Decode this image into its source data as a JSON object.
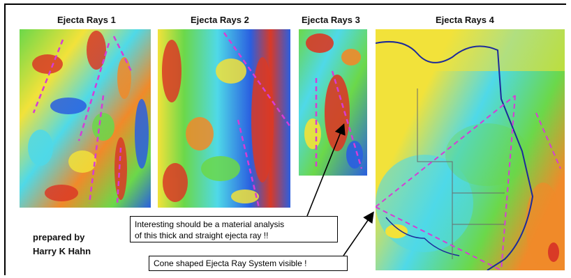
{
  "panels": [
    {
      "title": "Ejecta Rays 1",
      "image_icon": "ejecta-ray-map-1"
    },
    {
      "title": "Ejecta Rays 2",
      "image_icon": "ejecta-ray-map-2"
    },
    {
      "title": "Ejecta Rays 3",
      "image_icon": "ejecta-ray-map-3"
    },
    {
      "title": "Ejecta Rays 4",
      "image_icon": "australia-terrain-map"
    }
  ],
  "credit": {
    "line1": "prepared by",
    "line2": "Harry K Hahn"
  },
  "callouts": {
    "analysis_line1": "Interesting should be a material analysis",
    "analysis_line2": "of this thick and straight ejecta ray !!",
    "cone": "Cone shaped Ejecta Ray System visible !"
  },
  "colors": {
    "ray_marker": "#d63cd6",
    "blue": "#2a5fe0",
    "cyan": "#4fd9e8",
    "green": "#6bd84a",
    "yellow": "#f2e23a",
    "orange": "#f08a2a",
    "red": "#d93a26",
    "coast_line": "#1c2a9a"
  }
}
